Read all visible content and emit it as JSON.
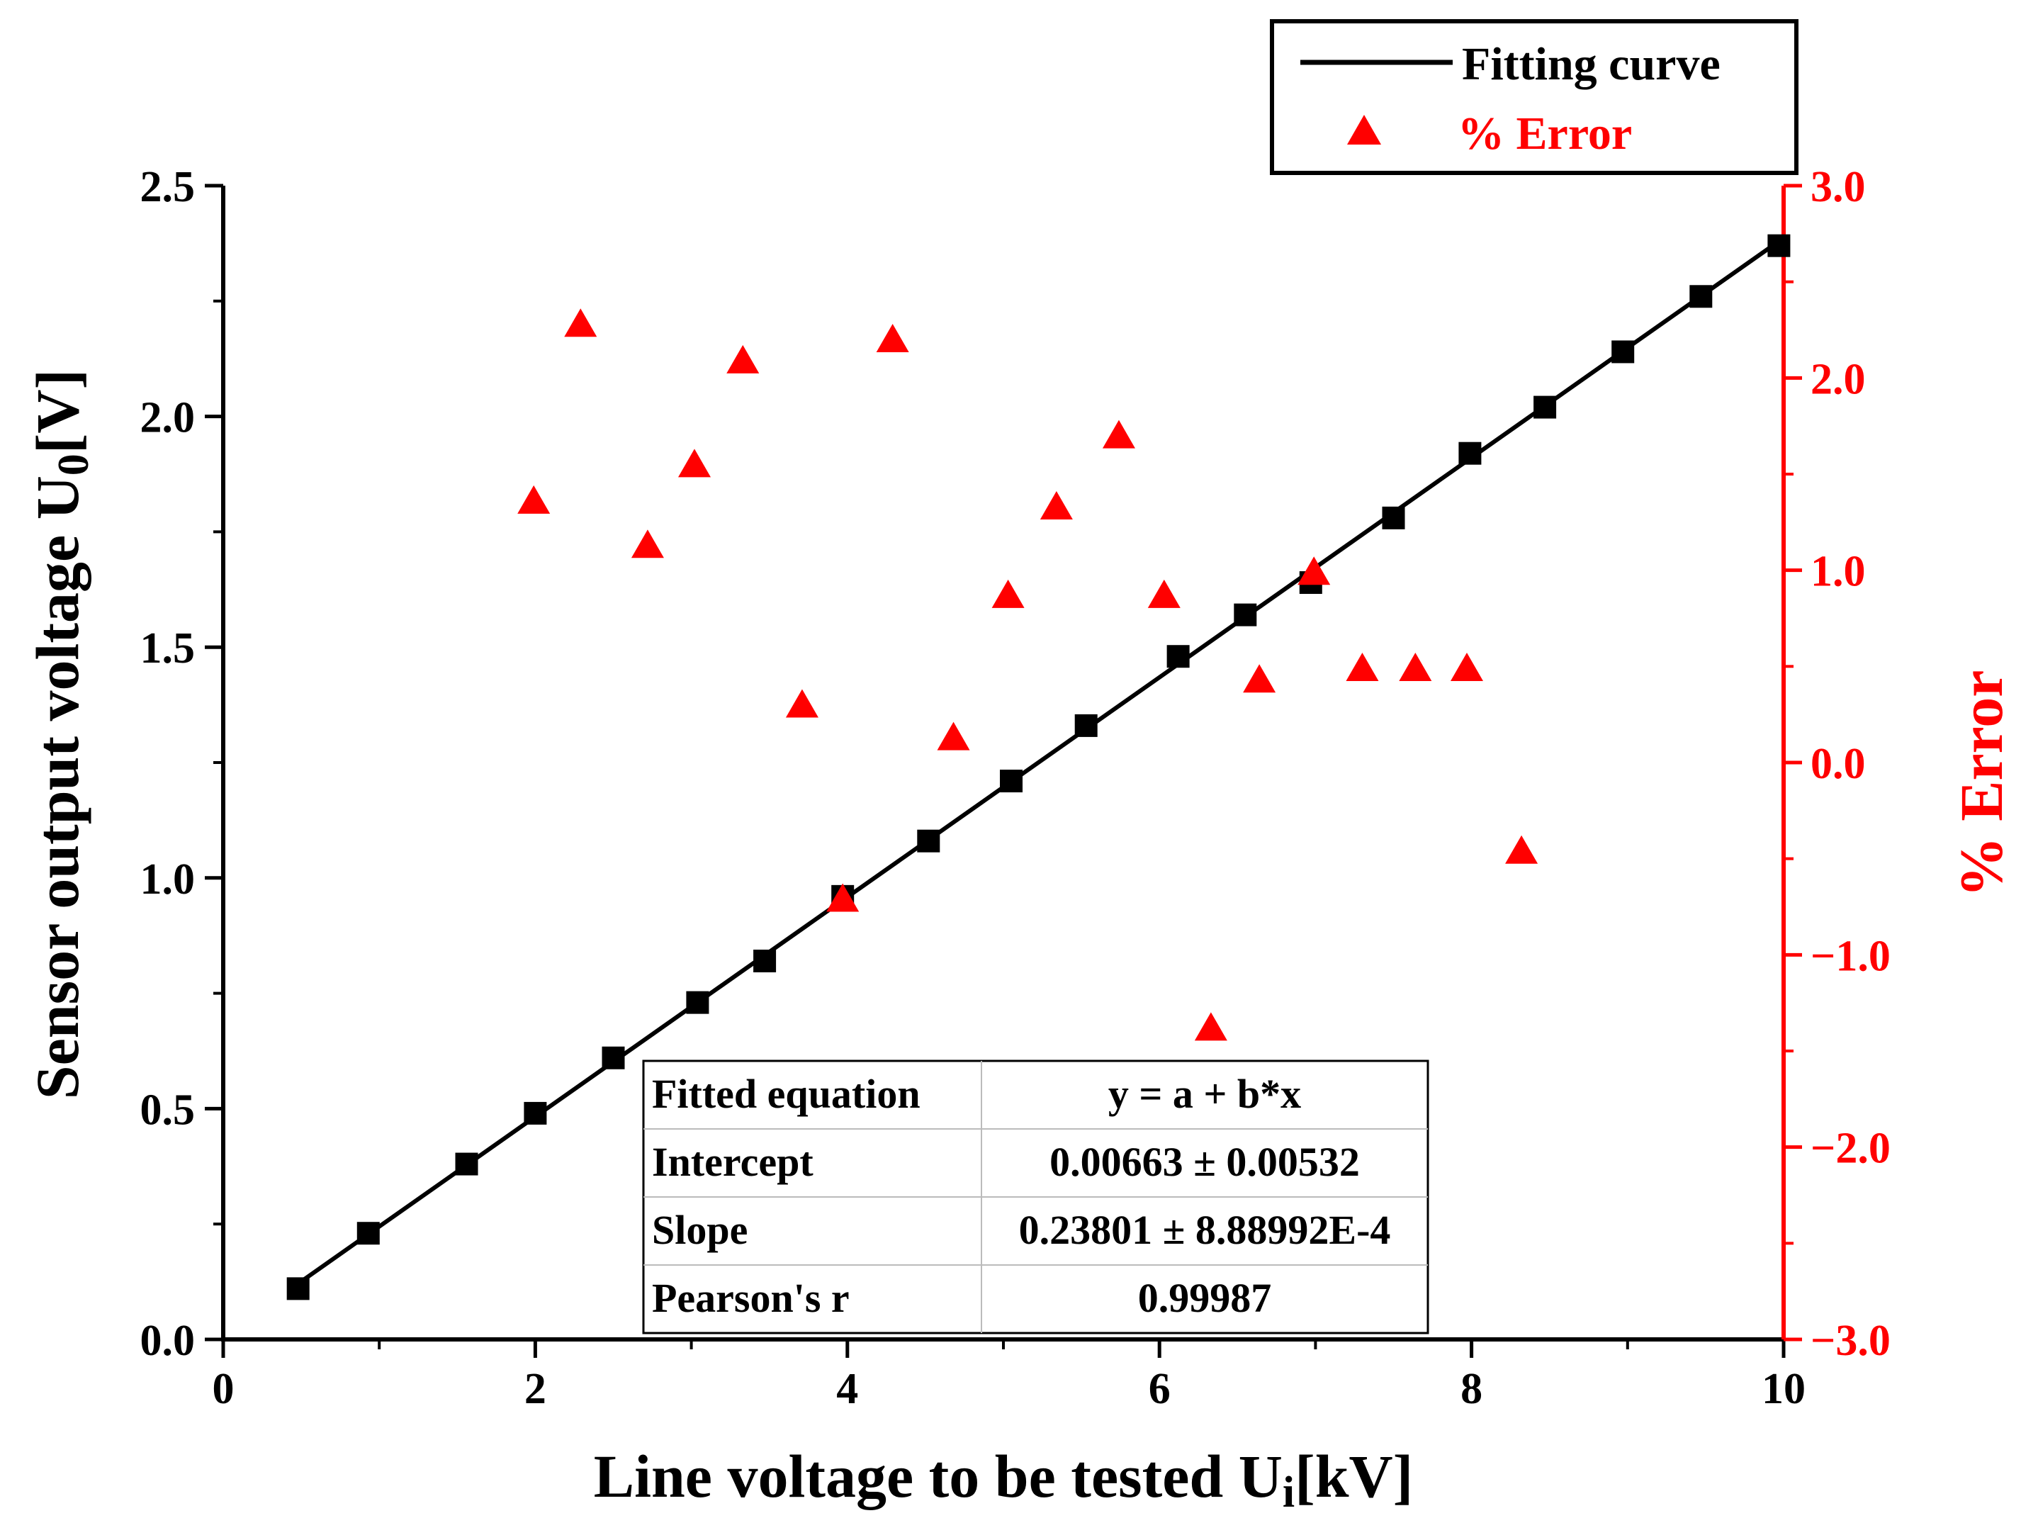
{
  "chart_data": {
    "type": "scatter",
    "xlabel": "Line voltage to be tested U",
    "xlabel_sub": "i",
    "xlabel_suffix": "[kV]",
    "ylabel": "Sensor output voltage U",
    "ylabel_sub": "0",
    "ylabel_suffix": "[V]",
    "y2label": "% Error",
    "xlim": [
      0,
      10
    ],
    "ylim": [
      0,
      2.5
    ],
    "y2lim": [
      -3,
      3
    ],
    "x_ticks": [
      0,
      2,
      4,
      6,
      8,
      10
    ],
    "x_tick_labels": [
      "0",
      "2",
      "4",
      "6",
      "8",
      "10"
    ],
    "y_ticks": [
      0,
      0.5,
      1.0,
      1.5,
      2.0,
      2.5
    ],
    "y_tick_labels": [
      "0.0",
      "0.5",
      "1.0",
      "1.5",
      "2.0",
      "2.5"
    ],
    "y2_ticks": [
      -3,
      -2,
      -1,
      0,
      1,
      2,
      3
    ],
    "y2_tick_labels": [
      "−3.0",
      "−2.0",
      "−1.0",
      "0.0",
      "1.0",
      "2.0",
      "3.0"
    ],
    "legend": {
      "placement": "top-right",
      "entries": [
        {
          "label": "Fitting curve",
          "color": "#000000",
          "marker": "line"
        },
        {
          "label": "% Error",
          "color": "#ff0000",
          "marker": "triangle"
        }
      ]
    },
    "fit": {
      "intercept": 0.00663,
      "slope": 0.23801,
      "x_range": [
        0.45,
        10
      ]
    },
    "series": [
      {
        "name": "Sensor output voltage",
        "axis": "left",
        "marker": "square",
        "color": "#000000",
        "x": [
          0.48,
          0.93,
          1.56,
          2.0,
          2.5,
          3.04,
          3.47,
          3.97,
          4.52,
          5.05,
          5.53,
          6.12,
          6.55,
          6.97,
          7.5,
          7.99,
          8.47,
          8.97,
          9.47,
          9.97
        ],
        "y": [
          0.11,
          0.23,
          0.38,
          0.49,
          0.61,
          0.73,
          0.82,
          0.96,
          1.08,
          1.21,
          1.33,
          1.48,
          1.57,
          1.64,
          1.78,
          1.92,
          2.02,
          2.14,
          2.26,
          2.37
        ]
      },
      {
        "name": "% Error",
        "axis": "right",
        "marker": "triangle",
        "color": "#ff0000",
        "x": [
          1.99,
          2.29,
          2.72,
          3.02,
          3.33,
          3.71,
          3.97,
          4.29,
          4.68,
          5.03,
          5.34,
          5.74,
          6.03,
          6.33,
          6.64,
          6.99,
          7.3,
          7.64,
          7.97,
          8.32
        ],
        "y": [
          1.35,
          2.27,
          1.12,
          1.54,
          2.08,
          0.29,
          -0.72,
          2.19,
          0.12,
          0.86,
          1.32,
          1.69,
          0.86,
          -1.39,
          0.42,
          0.98,
          0.48,
          0.48,
          0.48,
          -0.47
        ]
      }
    ],
    "fit_table": {
      "rows": [
        [
          "Fitted equation",
          "y = a + b*x"
        ],
        [
          "Intercept",
          "0.00663 ± 0.00532"
        ],
        [
          "Slope",
          "0.23801 ± 8.88992E-4"
        ],
        [
          "Pearson's r",
          "0.99987"
        ]
      ]
    }
  }
}
